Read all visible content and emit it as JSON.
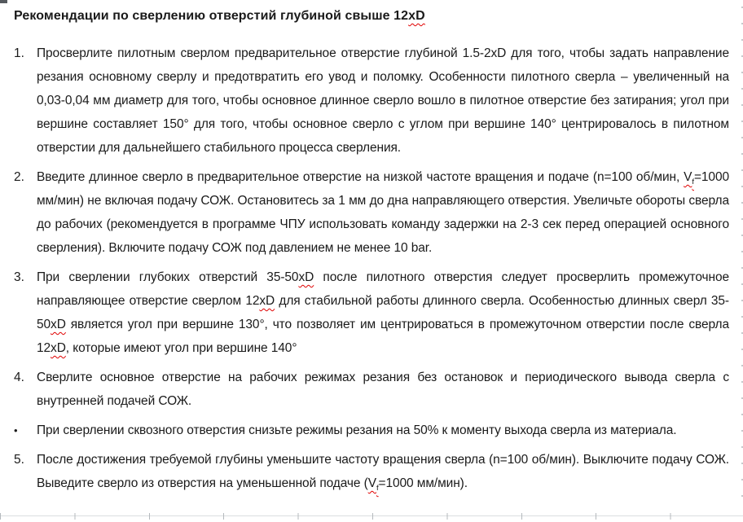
{
  "document": {
    "title_segments": [
      {
        "t": "Рекомендации по сверлению отверстий глубиной свыше 12"
      },
      {
        "t": "xD",
        "style": "misspell"
      }
    ],
    "items": [
      {
        "marker": "1.",
        "segments": [
          {
            "t": "Просверлите пилотным сверлом предварительное отверстие глубиной 1.5-2xD для того, чтобы задать направление резания основному сверлу и предотвратить его увод и поломку. Особенности пилотного сверла – увеличенный на 0,03-0,04 мм диаметр для того, чтобы основное длинное сверло вошло в пилотное отверстие без затирания; угол при вершине составляет 150° для того, чтобы основное сверло с углом при вершине 140° центрировалось в пилотном отверстии для дальнейшего стабильного процесса сверления."
          }
        ]
      },
      {
        "marker": "2.",
        "segments": [
          {
            "t": "Введите длинное сверло в предварительное отверстие на низкой частоте вращения и подаче (n=100 об/мин, "
          },
          {
            "t": "V",
            "style": "misspell"
          },
          {
            "t": "f",
            "style": "sub misspell"
          },
          {
            "t": "=1000 мм/мин) не включая подачу СОЖ. Остановитесь за 1 мм до дна направляющего отверстия. Увеличьте обороты сверла до рабочих (рекомендуется в программе ЧПУ использовать команду задержки на 2-3 сек перед операцией основного сверления). Включите подачу СОЖ под давлением не менее 10 bar."
          }
        ]
      },
      {
        "marker": "3.",
        "segments": [
          {
            "t": "При сверлении глубоких отверстий 35-50"
          },
          {
            "t": "xD",
            "style": "misspell"
          },
          {
            "t": " после пилотного отверстия следует просверлить промежуточное направляющее отверстие сверлом 12"
          },
          {
            "t": "xD",
            "style": "misspell"
          },
          {
            "t": " для стабильной работы длинного сверла. Особенностью длинных сверл 35-50"
          },
          {
            "t": "xD",
            "style": "misspell"
          },
          {
            "t": " является угол при вершине 130°, что позволяет им центрироваться в промежуточном отверстии после сверла 12"
          },
          {
            "t": "xD",
            "style": "misspell"
          },
          {
            "t": ", которые имеют угол при вершине 140°"
          }
        ]
      },
      {
        "marker": "4.",
        "segments": [
          {
            "t": "Сверлите основное отверстие на рабочих режимах резания без остановок и периодического вывода сверла с внутренней подачей СОЖ."
          }
        ]
      },
      {
        "marker": "•",
        "segments": [
          {
            "t": "При сверлении сквозного отверстия снизьте режимы резания на 50% к моменту выхода сверла из материала."
          }
        ]
      },
      {
        "marker": "5.",
        "segments": [
          {
            "t": "После достижения требуемой глубины уменьшите частоту вращения сверла (n=100 об/мин). Выключите подачу СОЖ. Выведите сверло из отверстия на уменьшенной подаче ("
          },
          {
            "t": "V",
            "style": "misspell"
          },
          {
            "t": "f",
            "style": "sub misspell"
          },
          {
            "t": "=1000 мм/мин)."
          }
        ]
      }
    ]
  }
}
